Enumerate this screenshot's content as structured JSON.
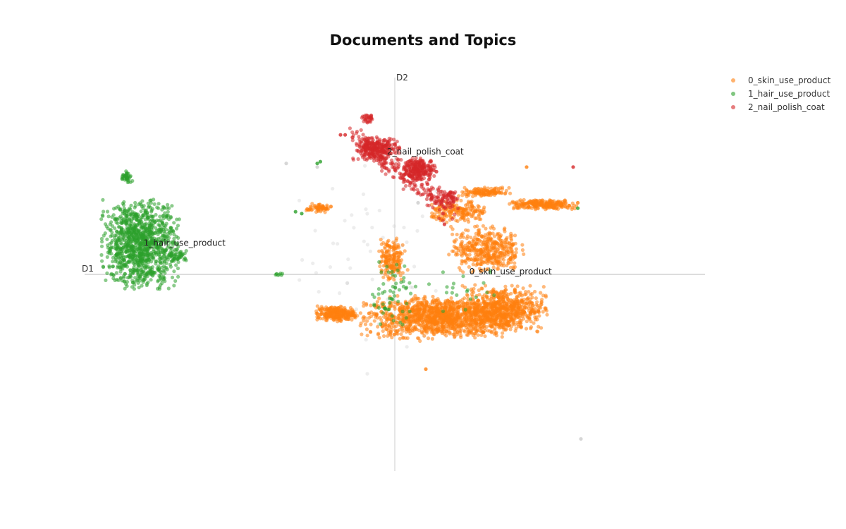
{
  "chart_data": {
    "type": "scatter",
    "title": "Documents and Topics",
    "xlabel": "D1",
    "ylabel": "D2",
    "xlim": [
      -10,
      10
    ],
    "ylim": [
      -8,
      8
    ],
    "grid": false,
    "legend_position": "top-right",
    "colors": {
      "outlier": "#cccccc"
    },
    "series": [
      {
        "name": "0_skin_use_product",
        "color": "#ff7f0e",
        "label": "0_skin_use_product",
        "label_pos": [
          4.8,
          0.0
        ],
        "clusters": [
          {
            "c": [
              3.0,
              -2.4
            ],
            "r": [
              4.8,
              1.1
            ],
            "n": 1300
          },
          {
            "c": [
              7.0,
              -1.9
            ],
            "r": [
              2.6,
              1.2
            ],
            "n": 600
          },
          {
            "c": [
              -3.8,
              -2.2
            ],
            "r": [
              1.2,
              0.4
            ],
            "n": 260
          },
          {
            "c": [
              5.9,
              1.4
            ],
            "r": [
              2.2,
              1.2
            ],
            "n": 420
          },
          {
            "c": [
              4.2,
              3.5
            ],
            "r": [
              1.8,
              0.6
            ],
            "n": 180
          },
          {
            "c": [
              9.5,
              3.9
            ],
            "r": [
              2.2,
              0.25
            ],
            "n": 240
          },
          {
            "c": [
              5.8,
              4.6
            ],
            "r": [
              1.6,
              0.25
            ],
            "n": 120
          },
          {
            "c": [
              -0.2,
              0.8
            ],
            "r": [
              0.8,
              1.2
            ],
            "n": 180
          },
          {
            "c": [
              -4.9,
              3.7
            ],
            "r": [
              0.8,
              0.25
            ],
            "n": 60
          }
        ],
        "extras": [
          [
            11.8,
            4.0
          ],
          [
            8.5,
            6.0
          ],
          [
            2.0,
            -5.3
          ]
        ]
      },
      {
        "name": "1_hair_use_product",
        "color": "#2ca02c",
        "label": "1_hair_use_product",
        "label_pos": [
          -16.2,
          1.6
        ],
        "clusters": [
          {
            "c": [
              -16.4,
              1.7
            ],
            "r": [
              2.3,
              2.3
            ],
            "n": 1100
          },
          {
            "c": [
              -17.3,
              5.4
            ],
            "r": [
              0.35,
              0.35
            ],
            "n": 40
          },
          {
            "c": [
              -14.0,
              1.0
            ],
            "r": [
              0.6,
              0.3
            ],
            "n": 50
          },
          {
            "c": [
              -7.5,
              0.0
            ],
            "r": [
              0.3,
              0.1
            ],
            "n": 8
          },
          {
            "c": [
              -0.2,
              -1.0
            ],
            "r": [
              1.5,
              1.8
            ],
            "n": 60
          },
          {
            "c": [
              4.5,
              -1.0
            ],
            "r": [
              2.5,
              1.2
            ],
            "n": 20
          }
        ],
        "extras": [
          [
            -6.0,
            3.4
          ],
          [
            -6.4,
            3.5
          ],
          [
            -4.8,
            6.3
          ],
          [
            -5.0,
            6.2
          ],
          [
            11.8,
            3.7
          ]
        ]
      },
      {
        "name": "2_nail_polish_coat",
        "color": "#d62728",
        "label": "2_nail_polish_coat",
        "label_pos": [
          -0.5,
          6.7
        ],
        "clusters": [
          {
            "c": [
              -1.2,
              7.0
            ],
            "r": [
              1.4,
              0.6
            ],
            "n": 260
          },
          {
            "c": [
              1.6,
              5.9
            ],
            "r": [
              1.0,
              0.55
            ],
            "n": 220
          },
          {
            "c": [
              -1.7,
              8.7
            ],
            "r": [
              0.4,
              0.25
            ],
            "n": 30
          },
          {
            "c": [
              3.6,
              4.3
            ],
            "r": [
              0.6,
              0.4
            ],
            "n": 40
          }
        ],
        "extras": [
          [
            11.5,
            6.0
          ],
          [
            3.2,
            2.8
          ],
          [
            -3.2,
            7.8
          ],
          [
            -3.5,
            7.8
          ]
        ]
      }
    ],
    "outliers": [
      [
        12.0,
        -9.2
      ],
      [
        -7.0,
        6.2
      ],
      [
        -5.0,
        6.0
      ],
      [
        1.5,
        4.0
      ],
      [
        -17.5,
        5.5
      ]
    ]
  }
}
